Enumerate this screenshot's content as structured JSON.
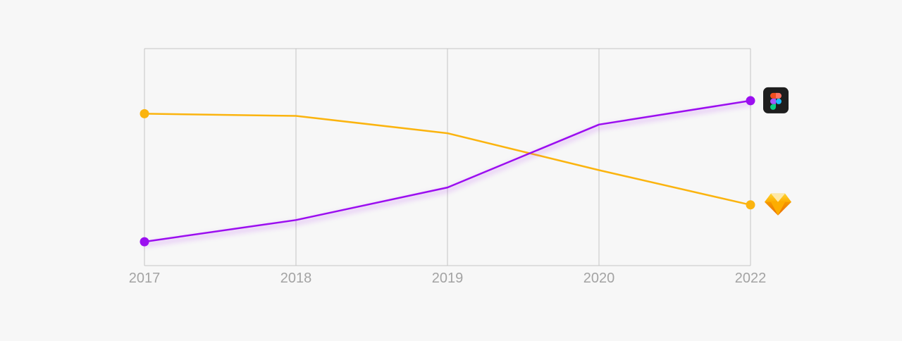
{
  "colors": {
    "background": "#f7f7f7",
    "grid": "#c4c4c4",
    "tick_label": "#a3a3a3",
    "figma_line": "#9b0ff0",
    "sketch_line": "#fbb40f"
  },
  "chart_data": {
    "type": "line",
    "title": "",
    "xlabel": "",
    "ylabel": "",
    "x": [
      "2017",
      "2018",
      "2019",
      "2020",
      "2022"
    ],
    "ylim": [
      0,
      100
    ],
    "grid": true,
    "legend": "icons at right end of each line",
    "series": [
      {
        "icon": "figma-logo-icon",
        "color": "#9b0ff0",
        "values": [
          11,
          21,
          36,
          65,
          76
        ]
      },
      {
        "icon": "sketch-logo-icon",
        "color": "#fbb40f",
        "values": [
          70,
          69,
          61,
          44,
          28
        ]
      }
    ]
  }
}
